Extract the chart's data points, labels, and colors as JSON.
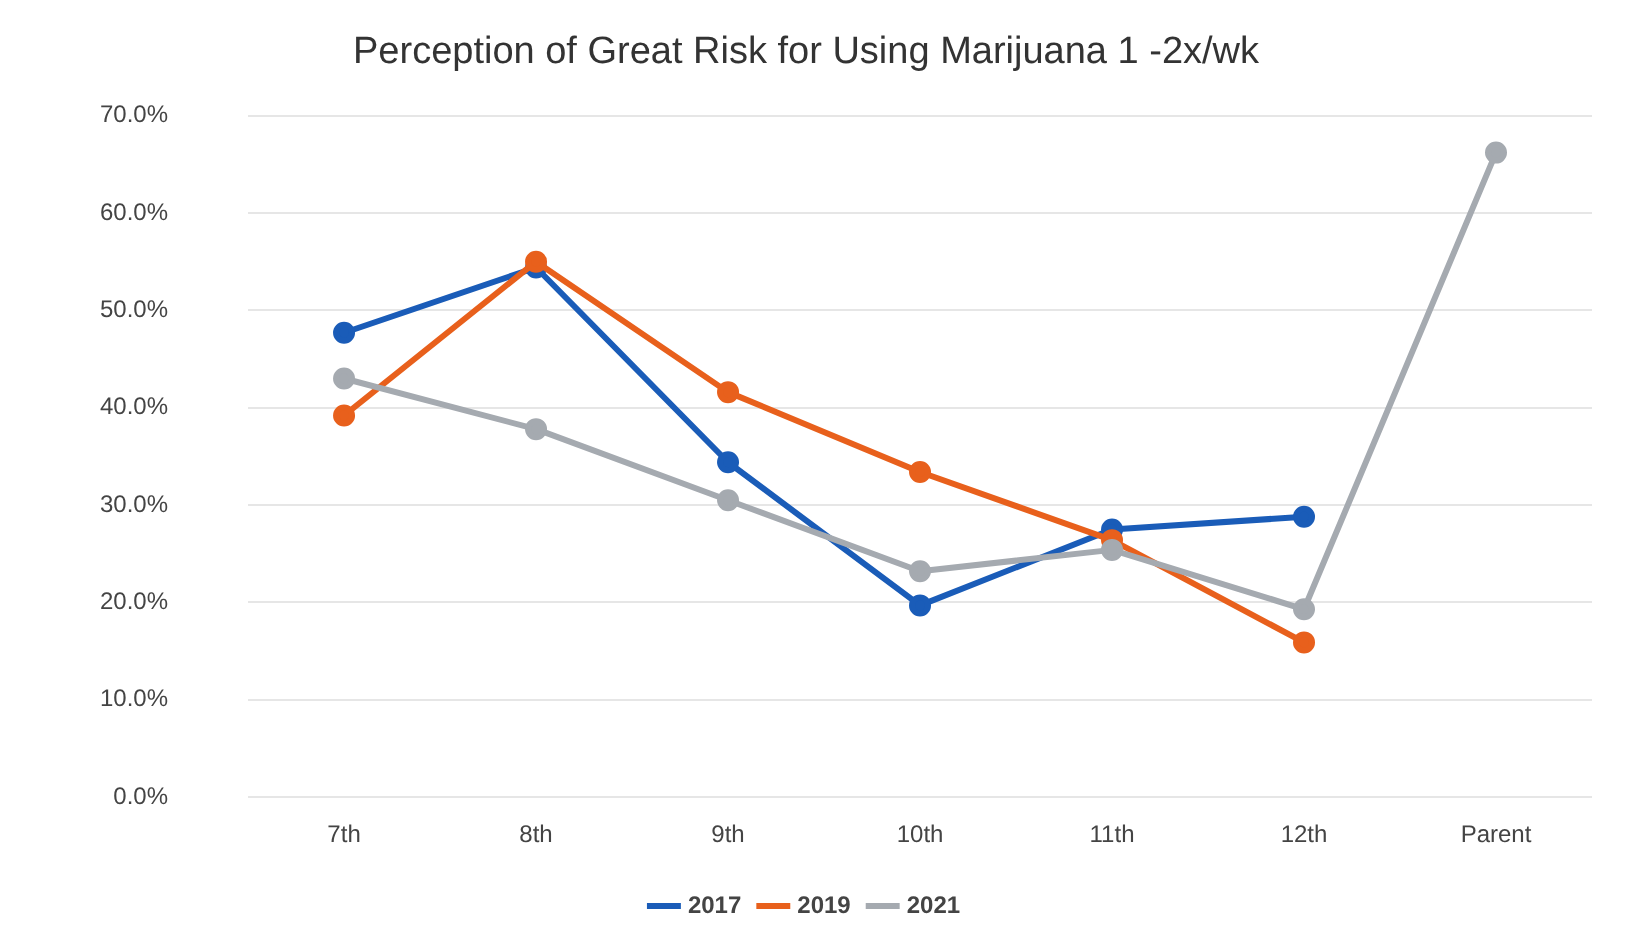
{
  "chart_data": {
    "type": "line",
    "title": "Perception of Great Risk for Using Marijuana 1 -2x/wk",
    "categories": [
      "7th",
      "8th",
      "9th",
      "10th",
      "11th",
      "12th",
      "Parent"
    ],
    "series": [
      {
        "name": "2017",
        "color": "#1a5cb8",
        "values": [
          47.7,
          54.4,
          34.4,
          19.7,
          27.5,
          28.8,
          null
        ]
      },
      {
        "name": "2019",
        "color": "#e8601c",
        "values": [
          39.2,
          55.0,
          41.6,
          33.4,
          26.4,
          15.9,
          null
        ]
      },
      {
        "name": "2021",
        "color": "#a5aab0",
        "values": [
          43.0,
          37.8,
          30.5,
          23.2,
          25.4,
          19.3,
          66.2
        ]
      }
    ],
    "ylim": [
      0,
      70
    ],
    "yticks": [
      {
        "value": 0,
        "label": "0.0%"
      },
      {
        "value": 10,
        "label": "10.0%"
      },
      {
        "value": 20,
        "label": "20.0%"
      },
      {
        "value": 30,
        "label": "30.0%"
      },
      {
        "value": 40,
        "label": "40.0%"
      },
      {
        "value": 50,
        "label": "50.0%"
      },
      {
        "value": 60,
        "label": "60.0%"
      },
      {
        "value": 70,
        "label": "70.0%"
      }
    ],
    "grid": "y",
    "legend": "bottom",
    "marker": "circle",
    "line_style": "solid"
  }
}
